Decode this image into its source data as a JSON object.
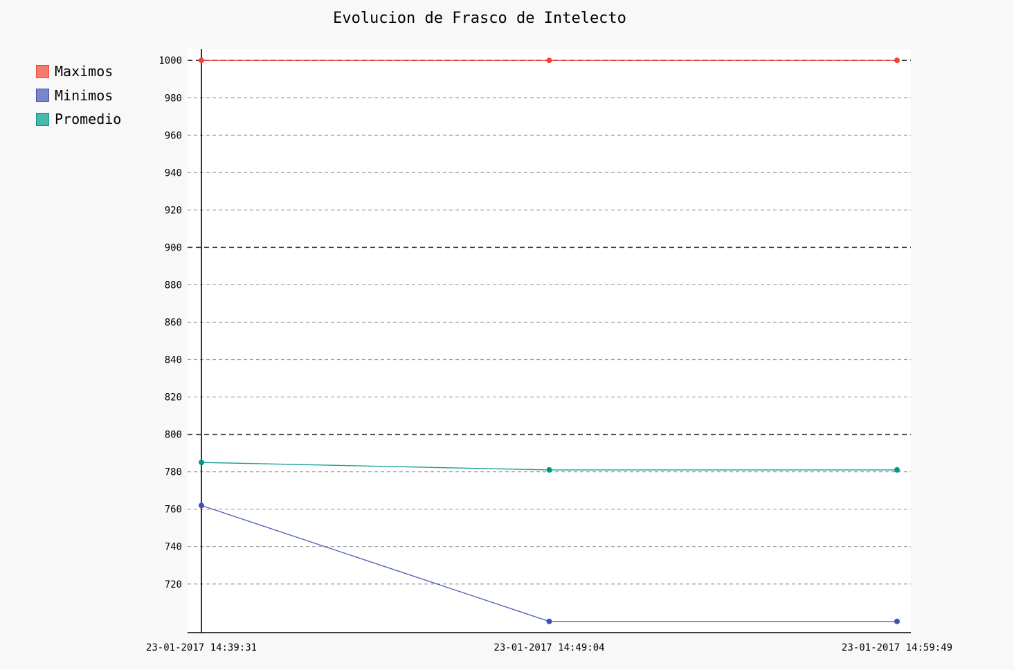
{
  "chart_data": {
    "type": "line",
    "title": "Evolucion de Frasco de Intelecto",
    "xlabel": "",
    "ylabel": "",
    "x": [
      "23-01-2017 14:39:31",
      "23-01-2017 14:49:04",
      "23-01-2017 14:59:49"
    ],
    "y_ticks": [
      720,
      740,
      760,
      780,
      800,
      820,
      840,
      860,
      880,
      900,
      920,
      940,
      960,
      980,
      1000
    ],
    "major_gridlines": [
      800,
      900,
      1000
    ],
    "ylim": [
      694,
      1006
    ],
    "grid": true,
    "legend_position": "top-left",
    "series": [
      {
        "name": "Maximos",
        "color": "#f44336",
        "fill": "#f67b6f",
        "values": [
          1000,
          1000,
          1000
        ]
      },
      {
        "name": "Minimos",
        "color": "#3f51b5",
        "fill": "#7986cb",
        "values": [
          762,
          700,
          700
        ]
      },
      {
        "name": "Promedio",
        "color": "#009688",
        "fill": "#4db6ac",
        "values": [
          785,
          781,
          781
        ]
      }
    ]
  }
}
